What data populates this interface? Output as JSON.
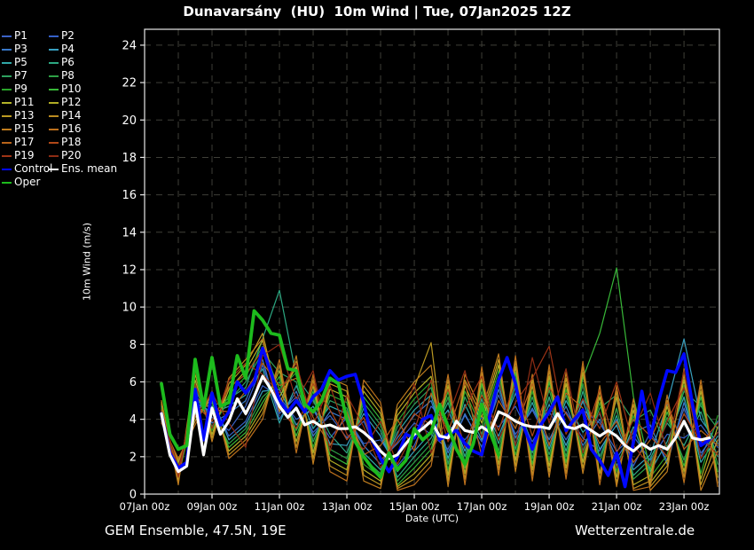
{
  "title": "Dunavarsány  (HU)  10m Wind | Tue, 07Jan2025 12Z",
  "footer": {
    "left": "GEM Ensemble, 47.5N, 19E",
    "right": "Wetterzentrale.de"
  },
  "axes": {
    "x_label": "Date (UTC)",
    "y_label": "10m Wind (m/s)",
    "x_tick_labels": [
      "07Jan 00z",
      "09Jan 00z",
      "11Jan 00z",
      "13Jan 00z",
      "15Jan 00z",
      "17Jan 00z",
      "19Jan 00z",
      "21Jan 00z",
      "23Jan 00z"
    ],
    "x_tick_days": [
      0,
      2,
      4,
      6,
      8,
      10,
      12,
      14,
      16
    ],
    "y_ticks": [
      0,
      2,
      4,
      6,
      8,
      10,
      12,
      14,
      16,
      18,
      20,
      22,
      24
    ]
  },
  "chart_data": {
    "type": "line",
    "title": "Dunavarsány (HU) 10m Wind, GEM Ensemble, init Tue 07Jan2025 12Z",
    "xlabel": "Date (UTC)",
    "ylabel": "10m Wind (m/s)",
    "x_unit_days_since": "07Jan2025 00z",
    "xlim": [
      0,
      17.05
    ],
    "ylim": [
      0,
      24.85
    ],
    "grid": {
      "x_step_days": 1,
      "y_step": 2,
      "color": "#3f3f38",
      "dash": [
        7,
        6
      ]
    },
    "legend_position": "top-left-outside",
    "colors": {
      "background": "#000000",
      "frame": "#e8e8e8",
      "text": "#ffffff"
    },
    "series": [
      {
        "name": "P1",
        "color": "#3b62c6",
        "width": 1.2,
        "start_day": 0.5,
        "step_day": 0.5,
        "values": [
          4.6,
          1.0,
          5.3,
          4.1,
          3.4,
          4.7,
          6.9,
          4.3,
          5.2,
          3.3,
          4.2,
          3.0,
          3.9,
          1.8,
          2.7,
          3.8,
          3.2,
          2.4,
          4.2,
          2.8,
          5.3,
          3.2,
          4.5,
          2.7,
          4.4,
          3.0,
          2.3,
          4.0,
          1.5,
          3.3,
          1.8,
          4.6,
          2.2,
          3.3
        ]
      },
      {
        "name": "P2",
        "color": "#3560c8",
        "width": 1.2,
        "start_day": 0.5,
        "step_day": 0.5,
        "values": [
          4.1,
          1.4,
          4.6,
          5.0,
          3.1,
          3.9,
          5.8,
          5.2,
          4.0,
          4.5,
          3.0,
          4.1,
          2.7,
          2.9,
          1.5,
          2.6,
          4.7,
          3.7,
          2.9,
          4.1,
          3.6,
          4.7,
          2.8,
          4.4,
          2.9,
          4.5,
          3.8,
          2.3,
          3.1,
          1.8,
          3.2,
          3.0,
          3.7,
          2.5
        ]
      },
      {
        "name": "P3",
        "color": "#3878c8",
        "width": 1.2,
        "start_day": 0.5,
        "step_day": 0.5,
        "values": [
          4.5,
          1.1,
          5.6,
          3.8,
          4.3,
          5.0,
          7.2,
          4.0,
          5.5,
          3.1,
          4.4,
          4.0,
          2.6,
          1.6,
          3.0,
          4.2,
          5.0,
          2.2,
          4.3,
          2.5,
          5.6,
          3.0,
          4.6,
          2.9,
          4.7,
          2.6,
          4.0,
          1.9,
          3.3,
          3.7,
          1.6,
          4.9,
          2.0,
          3.9
        ]
      },
      {
        "name": "P4",
        "color": "#38a0c0",
        "width": 1.2,
        "start_day": 0.5,
        "step_day": 0.5,
        "values": [
          4.2,
          1.3,
          4.4,
          5.2,
          2.9,
          3.7,
          5.5,
          5.6,
          3.7,
          4.7,
          2.7,
          2.6,
          4.3,
          3.1,
          1.2,
          2.3,
          3.3,
          4.5,
          2.3,
          4.7,
          3.1,
          5.4,
          2.5,
          4.8,
          2.6,
          5.0,
          2.4,
          3.7,
          1.3,
          2.1,
          4.8,
          8.3,
          4.0,
          2.7
        ]
      },
      {
        "name": "P5",
        "color": "#30a8a8",
        "width": 1.2,
        "start_day": 0.5,
        "step_day": 0.5,
        "values": [
          4.7,
          0.9,
          5.1,
          4.3,
          4.7,
          5.3,
          6.7,
          3.8,
          5.8,
          3.5,
          4.7,
          4.3,
          2.2,
          1.3,
          3.3,
          4.5,
          5.3,
          1.9,
          4.8,
          2.9,
          5.9,
          2.7,
          4.9,
          2.4,
          5.0,
          3.3,
          4.3,
          1.5,
          3.6,
          1.2,
          2.8,
          5.2,
          1.7,
          3.1
        ]
      },
      {
        "name": "P6",
        "color": "#2ca882",
        "width": 1.2,
        "start_day": 0.5,
        "step_day": 0.5,
        "values": [
          4.0,
          1.5,
          4.8,
          4.7,
          5.1,
          5.7,
          8.3,
          10.9,
          6.3,
          5.0,
          3.2,
          2.2,
          4.6,
          3.4,
          0.9,
          2.0,
          3.0,
          4.9,
          2.0,
          5.1,
          2.7,
          5.8,
          2.2,
          5.2,
          2.3,
          5.5,
          2.0,
          4.2,
          1.0,
          1.9,
          3.8,
          2.6,
          4.4,
          2.0
        ]
      },
      {
        "name": "P7",
        "color": "#2ea05e",
        "width": 1.2,
        "start_day": 0.5,
        "step_day": 0.5,
        "values": [
          4.4,
          1.2,
          5.4,
          3.6,
          5.0,
          6.0,
          7.6,
          6.5,
          6.0,
          2.8,
          5.0,
          4.6,
          1.9,
          1.1,
          3.6,
          4.8,
          5.7,
          1.6,
          5.2,
          3.2,
          6.3,
          2.4,
          5.2,
          2.1,
          5.3,
          2.3,
          4.6,
          5.3,
          3.9,
          4.5,
          2.5,
          5.5,
          4.7,
          3.5
        ]
      },
      {
        "name": "P8",
        "color": "#2ea046",
        "width": 1.2,
        "start_day": 0.5,
        "step_day": 0.5,
        "values": [
          4.3,
          1.0,
          4.5,
          4.4,
          2.7,
          3.5,
          5.2,
          6.0,
          3.4,
          5.2,
          2.4,
          1.9,
          4.9,
          3.7,
          0.7,
          1.7,
          2.7,
          5.2,
          1.7,
          5.5,
          2.3,
          6.2,
          1.9,
          5.6,
          2.0,
          5.9,
          1.7,
          4.6,
          0.8,
          1.6,
          4.1,
          1.8,
          4.9,
          1.6
        ]
      },
      {
        "name": "P9",
        "color": "#2aa42a",
        "width": 1.2,
        "start_day": 0.5,
        "step_day": 0.5,
        "values": [
          4.6,
          0.8,
          5.8,
          3.4,
          5.3,
          6.3,
          7.9,
          5.6,
          6.5,
          2.5,
          5.3,
          4.9,
          1.6,
          0.9,
          3.9,
          5.1,
          6.0,
          1.3,
          5.5,
          3.5,
          6.6,
          2.1,
          5.5,
          1.8,
          5.6,
          2.0,
          4.9,
          1.2,
          4.2,
          0.9,
          2.1,
          5.8,
          1.1,
          4.2
        ]
      },
      {
        "name": "P10",
        "color": "#38b838",
        "width": 1.2,
        "start_day": 0.5,
        "step_day": 0.5,
        "values": [
          4.1,
          1.6,
          4.3,
          4.9,
          2.5,
          3.3,
          4.9,
          6.3,
          3.1,
          5.5,
          2.1,
          1.6,
          5.2,
          4.0,
          0.5,
          1.4,
          2.4,
          5.5,
          1.4,
          5.9,
          1.9,
          6.5,
          1.6,
          6.0,
          1.7,
          6.2,
          8.6,
          12.1,
          5.2,
          1.3,
          4.4,
          1.5,
          5.2,
          1.2
        ]
      },
      {
        "name": "P11",
        "color": "#b4b428",
        "width": 1.2,
        "start_day": 0.5,
        "step_day": 0.5,
        "values": [
          4.8,
          0.7,
          6.1,
          3.2,
          5.6,
          6.6,
          8.2,
          5.2,
          6.8,
          2.2,
          5.6,
          5.2,
          1.3,
          0.7,
          4.2,
          5.4,
          6.3,
          1.0,
          5.8,
          3.8,
          6.9,
          1.8,
          5.8,
          1.5,
          5.9,
          1.7,
          5.2,
          0.9,
          4.5,
          0.6,
          1.8,
          6.1,
          0.8,
          3.6
        ]
      },
      {
        "name": "P12",
        "color": "#b0ac24",
        "width": 1.2,
        "start_day": 0.5,
        "step_day": 0.5,
        "values": [
          4.0,
          1.7,
          4.1,
          5.1,
          2.3,
          3.1,
          4.6,
          6.6,
          2.8,
          5.8,
          1.8,
          1.3,
          5.5,
          4.3,
          0.4,
          1.1,
          2.1,
          5.8,
          1.1,
          6.2,
          1.6,
          6.8,
          1.3,
          6.3,
          1.4,
          6.5,
          1.1,
          5.2,
          0.5,
          1.0,
          4.7,
          1.2,
          5.5,
          0.9
        ]
      },
      {
        "name": "P13",
        "color": "#bc9a22",
        "width": 1.2,
        "start_day": 0.5,
        "step_day": 0.5,
        "values": [
          4.9,
          0.6,
          6.4,
          3.0,
          5.9,
          6.9,
          8.6,
          4.8,
          7.1,
          1.9,
          5.9,
          5.5,
          1.0,
          0.5,
          4.5,
          5.7,
          8.1,
          0.7,
          6.1,
          4.1,
          7.2,
          1.5,
          6.1,
          1.2,
          6.2,
          1.4,
          5.5,
          0.6,
          4.8,
          0.4,
          1.5,
          6.4,
          0.5,
          2.9
        ]
      },
      {
        "name": "P14",
        "color": "#bc8c20",
        "width": 1.2,
        "start_day": 0.5,
        "step_day": 0.5,
        "values": [
          3.9,
          1.8,
          3.9,
          5.3,
          2.1,
          2.9,
          4.3,
          6.9,
          2.5,
          6.1,
          1.5,
          1.0,
          5.8,
          4.6,
          0.3,
          0.8,
          1.8,
          6.1,
          0.8,
          6.5,
          1.3,
          7.1,
          1.0,
          6.6,
          1.1,
          6.8,
          0.8,
          5.5,
          0.3,
          0.7,
          5.0,
          0.9,
          5.8,
          0.6
        ]
      },
      {
        "name": "P15",
        "color": "#c07d1e",
        "width": 1.2,
        "start_day": 0.5,
        "step_day": 0.5,
        "values": [
          5.0,
          0.5,
          6.7,
          2.8,
          6.2,
          7.2,
          8.3,
          4.4,
          7.4,
          1.6,
          6.2,
          5.8,
          0.7,
          0.3,
          4.8,
          6.0,
          6.9,
          0.4,
          6.4,
          4.4,
          7.5,
          1.2,
          6.4,
          0.9,
          6.5,
          1.1,
          5.8,
          0.4,
          5.1,
          0.2,
          1.2,
          6.7,
          0.2,
          2.3
        ]
      },
      {
        "name": "P16",
        "color": "#bc701c",
        "width": 1.2,
        "start_day": 0.5,
        "step_day": 0.5,
        "values": [
          3.8,
          1.9,
          3.7,
          5.5,
          1.9,
          2.7,
          4.0,
          7.2,
          2.2,
          6.4,
          1.2,
          0.7,
          6.1,
          4.9,
          0.2,
          0.5,
          1.5,
          6.4,
          0.5,
          6.8,
          1.0,
          7.4,
          0.7,
          6.9,
          0.8,
          7.1,
          0.5,
          5.8,
          0.2,
          0.4,
          5.3,
          0.6,
          6.1,
          0.4
        ]
      },
      {
        "name": "P17",
        "color": "#b8641a",
        "width": 1.2,
        "start_day": 0.5,
        "step_day": 0.5,
        "values": [
          4.5,
          1.3,
          5.2,
          4.5,
          4.4,
          5.5,
          7.0,
          5.8,
          6.2,
          4.1,
          2.6,
          4.4,
          2.1,
          2.6,
          4.0,
          2.3,
          5.4,
          3.3,
          6.0,
          2.0,
          5.0,
          3.5,
          5.9,
          2.6,
          5.4,
          4.6,
          2.7,
          3.9,
          1.7,
          2.9,
          4.9,
          2.4,
          3.4,
          2.6
        ]
      },
      {
        "name": "P18",
        "color": "#b04818",
        "width": 1.2,
        "start_day": 0.5,
        "step_day": 0.5,
        "values": [
          4.2,
          1.1,
          4.8,
          3.9,
          5.7,
          6.4,
          7.7,
          4.6,
          3.5,
          5.9,
          4.5,
          2.9,
          4.1,
          1.8,
          2.8,
          4.3,
          3.7,
          5.6,
          2.5,
          5.3,
          3.4,
          6.0,
          3.1,
          5.7,
          4.3,
          2.8,
          5.6,
          2.2,
          4.0,
          3.1,
          2.0,
          4.3,
          2.7,
          3.8
        ]
      },
      {
        "name": "P19",
        "color": "#9e3416",
        "width": 1.2,
        "start_day": 0.5,
        "step_day": 0.5,
        "values": [
          4.4,
          0.9,
          5.9,
          3.5,
          6.1,
          7.0,
          6.4,
          5.4,
          7.0,
          3.7,
          5.8,
          3.2,
          2.4,
          3.9,
          1.6,
          3.4,
          6.1,
          2.8,
          4.6,
          6.3,
          2.9,
          4.9,
          6.2,
          7.9,
          3.2,
          5.1,
          3.5,
          6.0,
          2.6,
          1.5,
          3.9,
          5.7,
          3.0,
          2.1
        ]
      },
      {
        "name": "P20",
        "color": "#8e2c14",
        "width": 1.2,
        "start_day": 0.5,
        "step_day": 0.5,
        "values": [
          4.3,
          1.5,
          4.2,
          5.4,
          3.8,
          2.5,
          7.4,
          8.0,
          5.0,
          6.6,
          2.3,
          5.3,
          3.6,
          1.4,
          3.1,
          5.9,
          2.2,
          4.1,
          6.6,
          3.0,
          6.1,
          2.6,
          7.3,
          3.8,
          6.7,
          2.2,
          4.4,
          1.4,
          3.4,
          5.4,
          2.3,
          6.6,
          1.9,
          3.3
        ]
      },
      {
        "name": "Control",
        "color": "#0008ff",
        "width": 3.6,
        "start_day": 0.5,
        "step_day": 0.25,
        "values": [
          4.3,
          2.2,
          1.4,
          1.7,
          5.6,
          2.9,
          5.4,
          3.7,
          4.4,
          6.0,
          5.4,
          6.0,
          7.8,
          6.5,
          5.0,
          4.4,
          5.0,
          4.4,
          5.2,
          5.6,
          6.6,
          6.1,
          6.3,
          6.4,
          4.9,
          2.9,
          1.9,
          1.2,
          2.0,
          3.2,
          3.0,
          4.0,
          4.2,
          2.9,
          3.2,
          3.4,
          2.7,
          2.3,
          2.1,
          4.3,
          6.1,
          7.3,
          5.9,
          3.6,
          2.4,
          3.7,
          4.4,
          5.2,
          3.4,
          4.0,
          4.5,
          2.4,
          1.8,
          1.0,
          2.2,
          0.4,
          2.8,
          5.5,
          3.0,
          5.0,
          6.6,
          6.5,
          7.5,
          4.8,
          2.6,
          2.9
        ]
      },
      {
        "name": "Ens. mean",
        "color": "#ffffff",
        "width": 3.2,
        "start_day": 0.5,
        "step_day": 0.25,
        "values": [
          4.3,
          2.1,
          1.2,
          1.5,
          4.9,
          2.1,
          4.6,
          3.2,
          3.9,
          5.1,
          4.3,
          5.2,
          6.3,
          5.6,
          4.7,
          4.1,
          4.6,
          3.7,
          3.9,
          3.6,
          3.7,
          3.5,
          3.5,
          3.6,
          3.3,
          2.9,
          2.3,
          1.9,
          2.1,
          2.7,
          3.2,
          3.5,
          3.9,
          3.1,
          3.0,
          3.9,
          3.4,
          3.3,
          3.6,
          3.3,
          4.4,
          4.2,
          3.9,
          3.7,
          3.6,
          3.6,
          3.5,
          4.3,
          3.6,
          3.5,
          3.7,
          3.4,
          3.1,
          3.4,
          3.1,
          2.6,
          2.3,
          2.7,
          2.4,
          2.6,
          2.4,
          3.0,
          3.9,
          3.0,
          2.9,
          3.0
        ]
      },
      {
        "name": "Oper",
        "color": "#1dbb1d",
        "width": 3.8,
        "start_day": 0.5,
        "step_day": 0.25,
        "values": [
          5.9,
          3.2,
          2.4,
          2.6,
          7.2,
          4.6,
          7.3,
          4.7,
          4.9,
          7.4,
          6.2,
          9.8,
          9.3,
          8.6,
          8.5,
          6.7,
          6.6,
          4.8,
          4.4,
          5.0,
          6.2,
          5.9,
          4.0,
          2.8,
          2.0,
          1.4,
          0.9,
          2.2,
          1.3,
          1.8,
          3.5,
          2.9,
          3.3,
          4.8,
          3.6,
          2.4,
          1.6,
          2.7,
          4.8,
          3.3,
          2.1
        ]
      }
    ]
  }
}
